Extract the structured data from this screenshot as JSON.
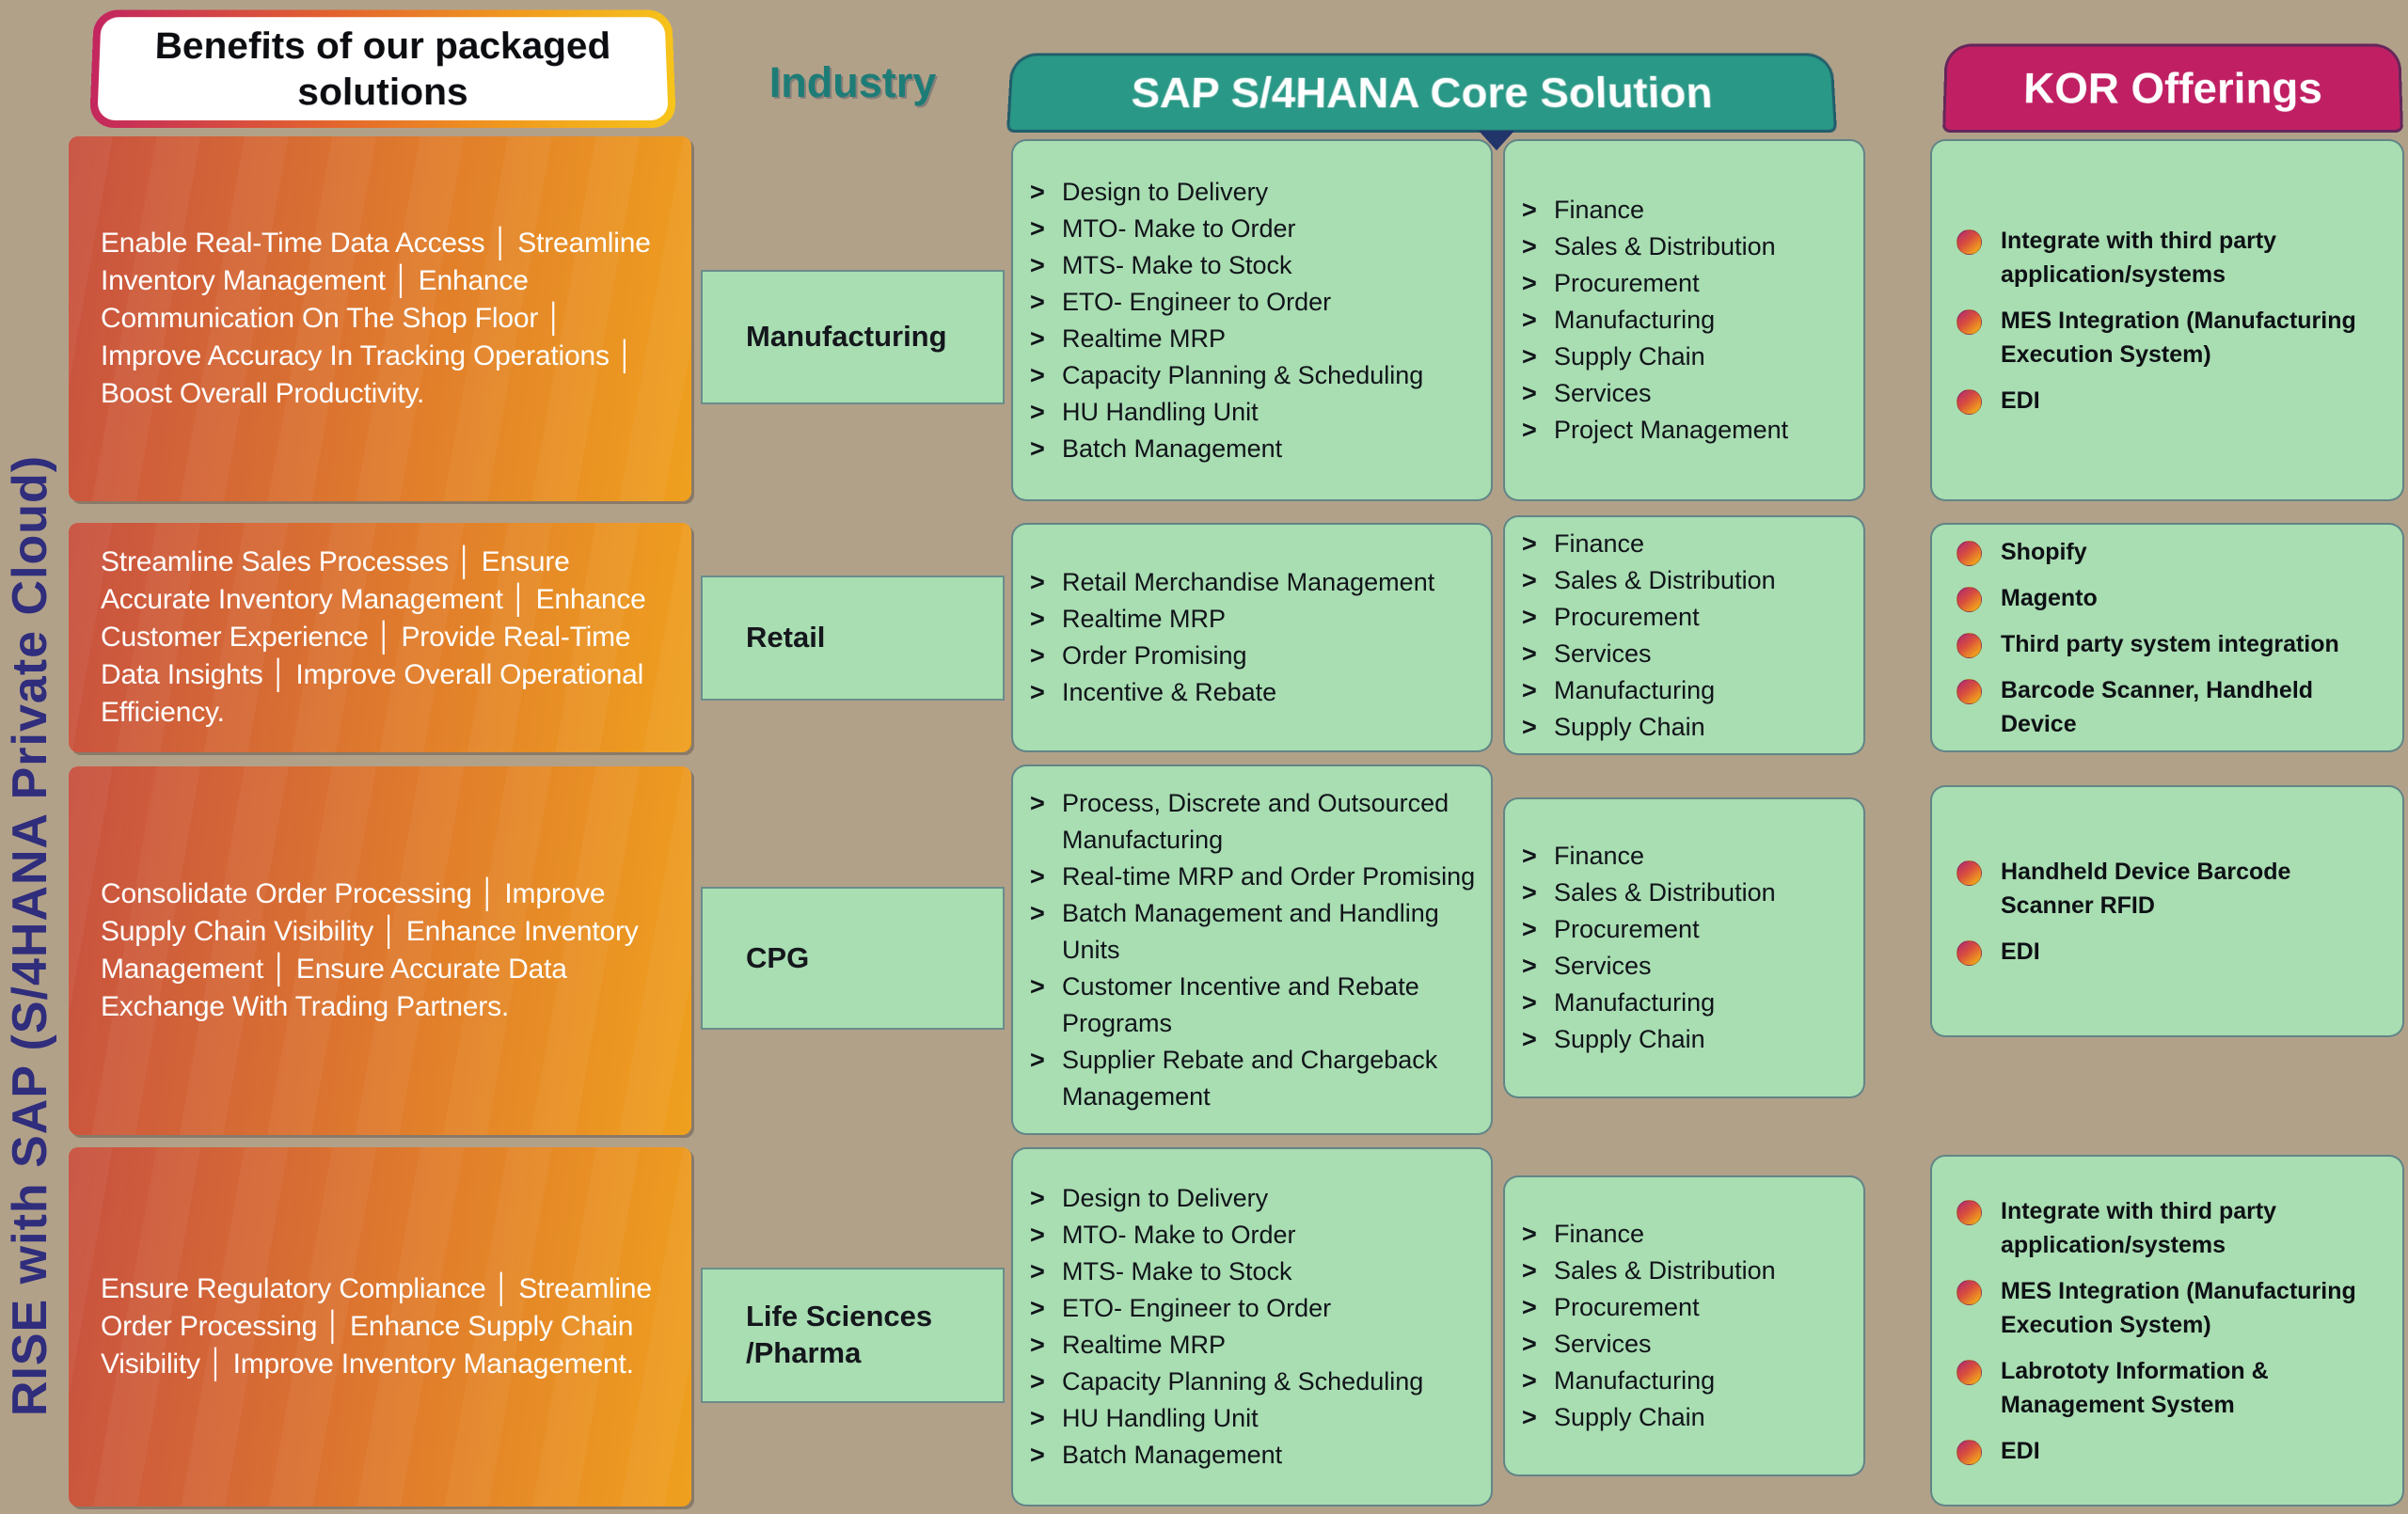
{
  "page": {
    "vertical_title": "RISE with SAP (S/4HANA Private Cloud)"
  },
  "headers": {
    "benefits": "Benefits of our packaged solutions",
    "industry": "Industry",
    "core": "SAP S/4HANA Core Solution",
    "kor": "KOR Offerings"
  },
  "icons": {
    "chevron_glyph": ">"
  },
  "colors": {
    "background_tan": "#b2a189",
    "card_green": "#a9ddb2",
    "core_header_teal": "#2a9886",
    "kor_header_magenta": "#c02063",
    "industry_label_teal": "#1e7c77",
    "vertical_title_indigo": "#2f2d7c",
    "benefit_gradient_start": "#c85140",
    "benefit_gradient_end": "#efa01e",
    "bullet_gradient_start": "#b93067",
    "bullet_gradient_end": "#f2a31c"
  },
  "rows": [
    {
      "industry": "Manufacturing",
      "benefits": "Enable Real-Time Data Access │ Streamline Inventory Management │ Enhance Communication On The Shop Floor │ Improve Accuracy In Tracking Operations │ Boost Overall Productivity.",
      "core_a": [
        "Design to Delivery",
        "MTO- Make to Order",
        "MTS- Make to Stock",
        "ETO- Engineer to Order",
        "Realtime MRP",
        "Capacity Planning & Scheduling",
        "HU Handling Unit",
        "Batch Management"
      ],
      "core_b": [
        "Finance",
        "Sales & Distribution",
        "Procurement",
        "Manufacturing",
        "Supply Chain",
        "Services",
        "Project Management"
      ],
      "kor": [
        "Integrate with third party application/systems",
        "MES Integration (Manufacturing Execution System)",
        "EDI"
      ]
    },
    {
      "industry": "Retail",
      "benefits": "Streamline Sales Processes │ Ensure Accurate Inventory Management │ Enhance Customer Experience │ Provide Real-Time Data Insights │ Improve Overall Operational Efficiency.",
      "core_a": [
        "Retail Merchandise Management",
        "Realtime MRP",
        "Order Promising",
        "Incentive & Rebate"
      ],
      "core_b": [
        "Finance",
        "Sales & Distribution",
        "Procurement",
        "Services",
        "Manufacturing",
        "Supply Chain"
      ],
      "kor": [
        "Shopify",
        "Magento",
        "Third party system integration",
        "Barcode Scanner, Handheld Device"
      ]
    },
    {
      "industry": "CPG",
      "benefits": "Consolidate Order Processing │ Improve Supply Chain Visibility │ Enhance Inventory Management │ Ensure Accurate Data Exchange With Trading Partners.",
      "core_a": [
        "Process, Discrete and Outsourced Manufacturing",
        "Real-time MRP and Order Promising",
        "Batch Management and Handling Units",
        "Customer Incentive and Rebate Programs",
        "Supplier Rebate and Chargeback Management"
      ],
      "core_b": [
        "Finance",
        "Sales & Distribution",
        "Procurement",
        "Services",
        "Manufacturing",
        "Supply Chain"
      ],
      "kor": [
        "Handheld Device Barcode Scanner RFID",
        "EDI"
      ]
    },
    {
      "industry": "Life Sciences /Pharma",
      "benefits": "Ensure Regulatory Compliance │ Streamline Order Processing │ Enhance Supply Chain Visibility │ Improve Inventory Management.",
      "core_a": [
        "Design to Delivery",
        "MTO- Make to Order",
        "MTS- Make to Stock",
        "ETO- Engineer to Order",
        "Realtime MRP",
        "Capacity Planning & Scheduling",
        "HU Handling Unit",
        "Batch Management"
      ],
      "core_b": [
        "Finance",
        "Sales & Distribution",
        "Procurement",
        "Services",
        "Manufacturing",
        "Supply Chain"
      ],
      "kor": [
        "Integrate with third party application/systems",
        "MES Integration (Manufacturing Execution System)",
        "Labrototy Information & Management System",
        "EDI"
      ]
    }
  ]
}
